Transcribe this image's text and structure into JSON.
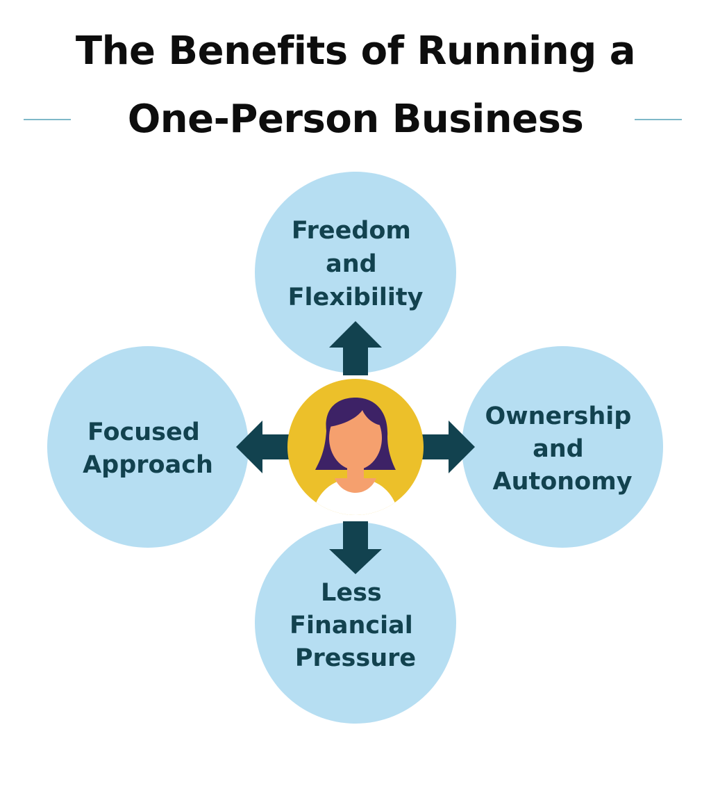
{
  "title": {
    "line1": "The Benefits of Running a",
    "line2": "One-Person Business"
  },
  "benefits": {
    "top": [
      "Freedom",
      "and",
      "Flexibility"
    ],
    "left": [
      "Focused",
      "Approach"
    ],
    "right": [
      "Ownership",
      "and",
      "Autonomy"
    ],
    "bottom": [
      "Less",
      "Financial",
      "Pressure"
    ]
  },
  "colors": {
    "bubble": "#b6def2",
    "arrow": "#12424f",
    "center": "#ecc02a",
    "hair": "#3d2266",
    "skin": "#f5a06e",
    "text": "#12424f",
    "rule": "#7fb8c8"
  },
  "icons": {
    "center": "person-avatar-icon",
    "arrows": "arrow-icon"
  }
}
